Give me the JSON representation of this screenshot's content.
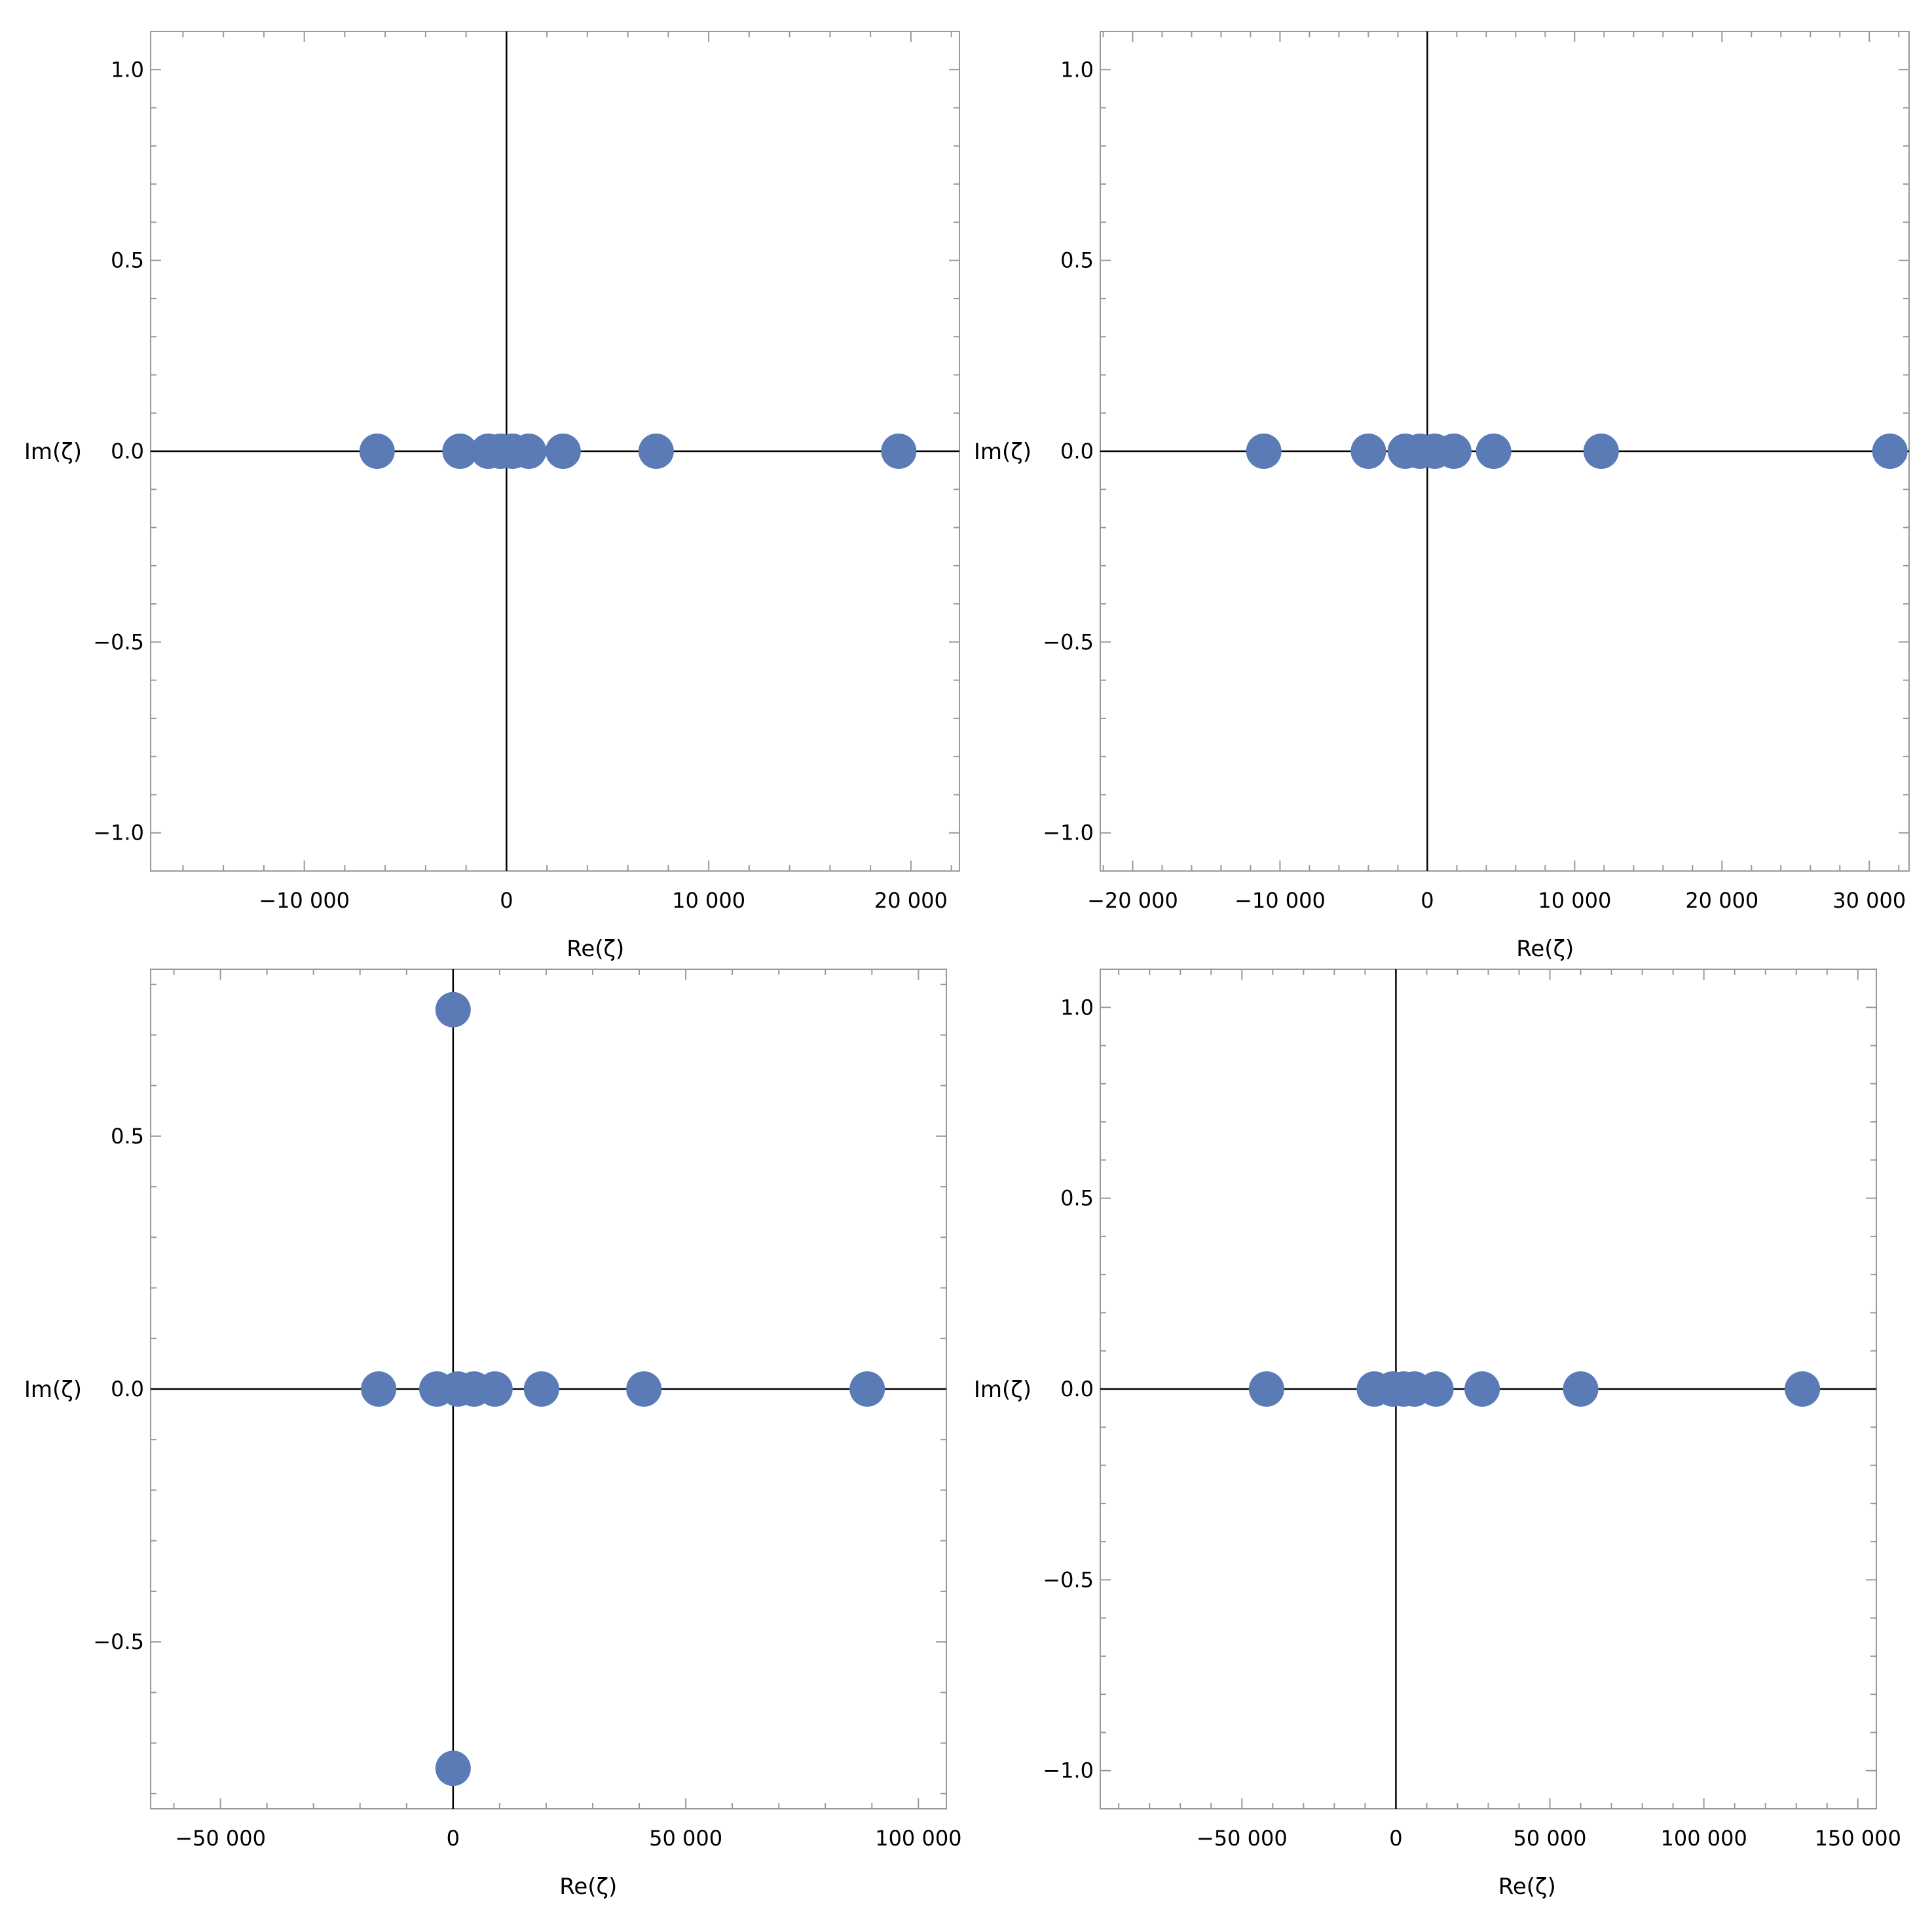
{
  "colors": {
    "marker": "#5a7bb6",
    "frame": "#999999",
    "axis": "#000000"
  },
  "chart_data": [
    {
      "type": "scatter",
      "title": "",
      "xlabel": "Re(ζ)",
      "ylabel": "Im(ζ)",
      "xlim": [
        -17600,
        22400
      ],
      "ylim": [
        -1.1,
        1.1
      ],
      "xticks": [
        {
          "v": -10000,
          "label": "−10 000"
        },
        {
          "v": 0,
          "label": "0"
        },
        {
          "v": 10000,
          "label": "10 000"
        },
        {
          "v": 20000,
          "label": "20 000"
        }
      ],
      "yticks": [
        {
          "v": 1,
          "label": "1.0"
        },
        {
          "v": 0.5,
          "label": "0.5"
        },
        {
          "v": 0,
          "label": "0.0"
        },
        {
          "v": -0.5,
          "label": "−0.5"
        },
        {
          "v": -1,
          "label": "−1.0"
        }
      ],
      "points": [
        {
          "x": -6400,
          "y": 0
        },
        {
          "x": -2300,
          "y": 0
        },
        {
          "x": -900,
          "y": 0
        },
        {
          "x": -300,
          "y": 0
        },
        {
          "x": 300,
          "y": 0
        },
        {
          "x": 1100,
          "y": 0
        },
        {
          "x": 2800,
          "y": 0
        },
        {
          "x": 7400,
          "y": 0
        },
        {
          "x": 19400,
          "y": 0
        }
      ]
    },
    {
      "type": "scatter",
      "title": "",
      "xlabel": "Re(ζ)",
      "ylabel": "Im(ζ)",
      "xlim": [
        -22200,
        32700
      ],
      "ylim": [
        -1.1,
        1.1
      ],
      "xticks": [
        {
          "v": -20000,
          "label": "−20 000"
        },
        {
          "v": -10000,
          "label": "−10 000"
        },
        {
          "v": 0,
          "label": "0"
        },
        {
          "v": 10000,
          "label": "10 000"
        },
        {
          "v": 20000,
          "label": "20 000"
        },
        {
          "v": 30000,
          "label": "30 000"
        }
      ],
      "yticks": [
        {
          "v": 1,
          "label": "1.0"
        },
        {
          "v": 0.5,
          "label": "0.5"
        },
        {
          "v": 0,
          "label": "0.0"
        },
        {
          "v": -0.5,
          "label": "−0.5"
        },
        {
          "v": -1,
          "label": "−1.0"
        }
      ],
      "points": [
        {
          "x": -11100,
          "y": 0
        },
        {
          "x": -4000,
          "y": 0
        },
        {
          "x": -1500,
          "y": 0
        },
        {
          "x": -500,
          "y": 0
        },
        {
          "x": 500,
          "y": 0
        },
        {
          "x": 1800,
          "y": 0
        },
        {
          "x": 4500,
          "y": 0
        },
        {
          "x": 11800,
          "y": 0
        },
        {
          "x": 31400,
          "y": 0
        }
      ]
    },
    {
      "type": "scatter",
      "title": "",
      "xlabel": "Re(ζ)",
      "ylabel": "Im(ζ)",
      "xlim": [
        -65000,
        106000
      ],
      "ylim": [
        -0.83,
        0.83
      ],
      "xticks": [
        {
          "v": -50000,
          "label": "−50 000"
        },
        {
          "v": 0,
          "label": "0"
        },
        {
          "v": 50000,
          "label": "50 000"
        },
        {
          "v": 100000,
          "label": "100 000"
        }
      ],
      "yticks": [
        {
          "v": 0.5,
          "label": "0.5"
        },
        {
          "v": 0,
          "label": "0.0"
        },
        {
          "v": -0.5,
          "label": "−0.5"
        }
      ],
      "points": [
        {
          "x": 0,
          "y": 0.75
        },
        {
          "x": 0,
          "y": -0.75
        },
        {
          "x": -16000,
          "y": 0
        },
        {
          "x": -3500,
          "y": 0
        },
        {
          "x": 1000,
          "y": 0
        },
        {
          "x": 4500,
          "y": 0
        },
        {
          "x": 9000,
          "y": 0
        },
        {
          "x": 19000,
          "y": 0
        },
        {
          "x": 41000,
          "y": 0
        },
        {
          "x": 89000,
          "y": 0
        }
      ]
    },
    {
      "type": "scatter",
      "title": "",
      "xlabel": "Re(ζ)",
      "ylabel": "Im(ζ)",
      "xlim": [
        -96000,
        156000
      ],
      "ylim": [
        -1.1,
        1.1
      ],
      "xticks": [
        {
          "v": -50000,
          "label": "−50 000"
        },
        {
          "v": 0,
          "label": "0"
        },
        {
          "v": 50000,
          "label": "50 000"
        },
        {
          "v": 100000,
          "label": "100 000"
        },
        {
          "v": 150000,
          "label": "150 000"
        }
      ],
      "yticks": [
        {
          "v": 1,
          "label": "1.0"
        },
        {
          "v": 0.5,
          "label": "0.5"
        },
        {
          "v": 0,
          "label": "0.0"
        },
        {
          "v": -0.5,
          "label": "−0.5"
        },
        {
          "v": -1,
          "label": "−1.0"
        }
      ],
      "points": [
        {
          "x": -42000,
          "y": 0
        },
        {
          "x": -7000,
          "y": 0
        },
        {
          "x": -1000,
          "y": 0
        },
        {
          "x": 2500,
          "y": 0
        },
        {
          "x": 6000,
          "y": 0
        },
        {
          "x": 13000,
          "y": 0
        },
        {
          "x": 28000,
          "y": 0
        },
        {
          "x": 60000,
          "y": 0
        },
        {
          "x": 132000,
          "y": 0
        }
      ]
    }
  ]
}
